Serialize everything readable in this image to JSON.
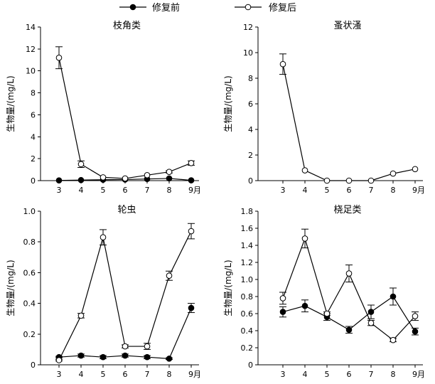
{
  "legend": [
    {
      "label": "修复前",
      "marker": "filled-circle"
    },
    {
      "label": "修复后",
      "marker": "open-circle"
    }
  ],
  "chart_data": [
    {
      "type": "line",
      "title": "枝角类",
      "ylabel": "生物量/(mg/L)",
      "ylim": [
        0,
        14
      ],
      "yticks": [
        "0",
        "2",
        "4",
        "6",
        "8",
        "10",
        "12",
        "14"
      ],
      "x": [
        3,
        4,
        5,
        6,
        7,
        8,
        9
      ],
      "xtick_labels": [
        "3",
        "4",
        "5",
        "6",
        "7",
        "8",
        "9月"
      ],
      "series": [
        {
          "name": "修复前",
          "values": [
            0.02,
            0.05,
            0.08,
            0.1,
            0.15,
            0.2,
            0.03
          ],
          "err": [
            0,
            0,
            0,
            0,
            0,
            0,
            0
          ]
        },
        {
          "name": "修复后",
          "values": [
            11.2,
            1.5,
            0.3,
            0.2,
            0.5,
            0.8,
            1.6
          ],
          "err": [
            1.0,
            0.3,
            0,
            0,
            0,
            0.1,
            0.2
          ]
        }
      ]
    },
    {
      "type": "line",
      "title": "蚤状溞",
      "ylabel": "生物量/(mg/L)",
      "ylim": [
        0,
        12
      ],
      "yticks": [
        "0",
        "2",
        "4",
        "6",
        "8",
        "10",
        "12"
      ],
      "x": [
        3,
        4,
        5,
        6,
        7,
        8,
        9
      ],
      "xtick_labels": [
        "3",
        "4",
        "5",
        "6",
        "7",
        "8",
        "9月"
      ],
      "series": [
        {
          "name": "修复后",
          "values": [
            9.1,
            0.8,
            0.0,
            0.0,
            0.0,
            0.55,
            0.9
          ],
          "err": [
            0.8,
            0,
            0,
            0,
            0,
            0,
            0
          ]
        }
      ]
    },
    {
      "type": "line",
      "title": "轮虫",
      "ylabel": "生物量/(mg/L)",
      "ylim": [
        0,
        1.0
      ],
      "yticks": [
        "0",
        "0.2",
        "0.4",
        "0.6",
        "0.8",
        "1.0"
      ],
      "x": [
        3,
        4,
        5,
        6,
        7,
        8,
        9
      ],
      "xtick_labels": [
        "3",
        "4",
        "5",
        "6",
        "7",
        "8",
        "9月"
      ],
      "series": [
        {
          "name": "修复前",
          "values": [
            0.05,
            0.06,
            0.05,
            0.06,
            0.05,
            0.04,
            0.37
          ],
          "err": [
            0.005,
            0.01,
            0.01,
            0.01,
            0.01,
            0.005,
            0.03
          ]
        },
        {
          "name": "修复后",
          "values": [
            0.03,
            0.32,
            0.83,
            0.12,
            0.12,
            0.58,
            0.87
          ],
          "err": [
            0.005,
            0.015,
            0.05,
            0.01,
            0.02,
            0.03,
            0.05
          ]
        }
      ]
    },
    {
      "type": "line",
      "title": "桡足类",
      "ylabel": "生物量/(mg/L)",
      "ylim": [
        0,
        1.8
      ],
      "yticks": [
        "0",
        "0.2",
        "0.4",
        "0.6",
        "0.8",
        "1.0",
        "1.2",
        "1.4",
        "1.6",
        "1.8"
      ],
      "x": [
        3,
        4,
        5,
        6,
        7,
        8,
        9
      ],
      "xtick_labels": [
        "3",
        "4",
        "5",
        "6",
        "7",
        "8",
        "9月"
      ],
      "series": [
        {
          "name": "修复前",
          "values": [
            0.62,
            0.69,
            0.56,
            0.41,
            0.62,
            0.8,
            0.39
          ],
          "err": [
            0.06,
            0.07,
            0.04,
            0.04,
            0.08,
            0.1,
            0.04
          ]
        },
        {
          "name": "修复后",
          "values": [
            0.78,
            1.48,
            0.6,
            1.07,
            0.49,
            0.29,
            0.57
          ],
          "err": [
            0.07,
            0.11,
            0.02,
            0.1,
            0.03,
            0.02,
            0.05
          ]
        }
      ]
    }
  ]
}
